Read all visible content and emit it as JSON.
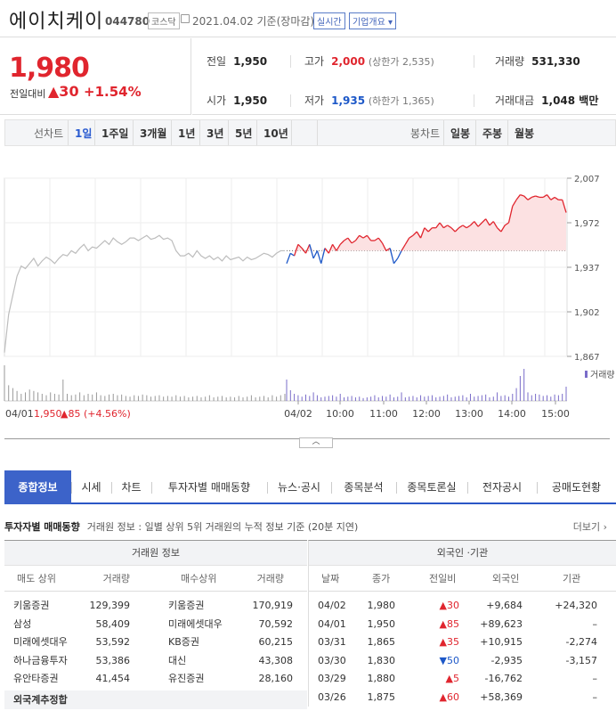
{
  "header": {
    "name": "에이치케이",
    "code": "044780",
    "market": "코스닥",
    "date": "2021.04.02 기준(장마감)",
    "realtime": "실시간",
    "corp_info": "기업개요 ▾"
  },
  "price": {
    "current": "1,980",
    "change_label": "전일대비",
    "change_value": "▲30",
    "change_pct": "+1.54%"
  },
  "info": {
    "prev_label": "전일",
    "prev": "1,950",
    "high_label": "고가",
    "high": "2,000",
    "upper": "(상한가 2,535)",
    "volume_label": "거래량",
    "volume": "531,330",
    "open_label": "시가",
    "open": "1,950",
    "low_label": "저가",
    "low": "1,935",
    "lower": "(하한가 1,365)",
    "amount_label": "거래대금",
    "amount": "1,048 백만"
  },
  "periods": {
    "line_label": "선차트",
    "items": [
      "1일",
      "1주일",
      "3개월",
      "1년",
      "3년",
      "5년",
      "10년"
    ],
    "candle_label": "봉차트",
    "candle_items": [
      "일봉",
      "주봉",
      "월봉"
    ]
  },
  "chart_data": {
    "type": "line",
    "y_ticks": [
      "2,007",
      "1,972",
      "1,937",
      "1,902",
      "1,867"
    ],
    "ylim": [
      1867,
      2007
    ],
    "baseline": 1950,
    "volume_label": "거래량",
    "x_ticks": [
      "04/02",
      "10:00",
      "11:00",
      "12:00",
      "13:00",
      "14:00",
      "15:00"
    ],
    "prev_day": {
      "date": "04/01",
      "price": "1,950",
      "change": "▲85",
      "pct": "(+4.56%)"
    },
    "colors": {
      "up": "#e0252e",
      "down": "#1d58c8",
      "prev": "#bdbdbd",
      "fill": "#fce1e2"
    },
    "prev_series": [
      1870,
      1900,
      1915,
      1930,
      1938,
      1936,
      1940,
      1944,
      1938,
      1942,
      1945,
      1943,
      1940,
      1944,
      1947,
      1946,
      1950,
      1948,
      1952,
      1955,
      1950,
      1953,
      1952,
      1955,
      1958,
      1955,
      1960,
      1957,
      1955,
      1957,
      1960,
      1960,
      1958,
      1960,
      1962,
      1959,
      1960,
      1962,
      1959,
      1960,
      1958,
      1950,
      1946,
      1946,
      1948,
      1945,
      1950,
      1946,
      1944,
      1946,
      1943,
      1945,
      1942,
      1946,
      1943,
      1944,
      1945,
      1942,
      1945,
      1943,
      1944,
      1946,
      1948,
      1947,
      1945,
      1948,
      1950,
      1950
    ],
    "today_series": [
      1940,
      1948,
      1946,
      1955,
      1952,
      1948,
      1955,
      1944,
      1950,
      1940,
      1952,
      1948,
      1955,
      1950,
      1955,
      1958,
      1960,
      1956,
      1958,
      1962,
      1960,
      1962,
      1958,
      1958,
      1960,
      1956,
      1950,
      1952,
      1940,
      1944,
      1950,
      1955,
      1960,
      1962,
      1965,
      1960,
      1968,
      1965,
      1968,
      1968,
      1972,
      1968,
      1970,
      1968,
      1965,
      1968,
      1970,
      1968,
      1970,
      1973,
      1969,
      1972,
      1975,
      1970,
      1973,
      1968,
      1965,
      1970,
      1972,
      1985,
      1990,
      1994,
      1993,
      1990,
      1992,
      1993,
      1992,
      1992,
      1994,
      1990,
      1992,
      1990,
      1990,
      1980
    ],
    "prev_volume": [
      50,
      22,
      18,
      14,
      10,
      12,
      16,
      14,
      12,
      10,
      8,
      12,
      10,
      9,
      30,
      10,
      8,
      9,
      12,
      8,
      10,
      9,
      12,
      8,
      7,
      9,
      10,
      8,
      9,
      7,
      6,
      8,
      7,
      9,
      8,
      6,
      7,
      8,
      6,
      7,
      6,
      8,
      6,
      7,
      5,
      6,
      7,
      5,
      6,
      8,
      5,
      6,
      7,
      5,
      6,
      5,
      7,
      5,
      6,
      8,
      5,
      6,
      7,
      5,
      8,
      6,
      8,
      10
    ],
    "today_volume": [
      30,
      15,
      10,
      8,
      6,
      9,
      7,
      12,
      8,
      5,
      6,
      7,
      8,
      6,
      10,
      5,
      6,
      7,
      5,
      6,
      4,
      5,
      6,
      8,
      5,
      7,
      6,
      9,
      5,
      6,
      12,
      5,
      6,
      7,
      5,
      8,
      6,
      7,
      8,
      5,
      6,
      7,
      9,
      5,
      6,
      7,
      8,
      5,
      10,
      6,
      7,
      8,
      9,
      5,
      6,
      12,
      7,
      8,
      6,
      10,
      18,
      35,
      45,
      12,
      8,
      10,
      9,
      7,
      8,
      6,
      9,
      8,
      10,
      20
    ]
  },
  "main_tabs": [
    "종합정보",
    "시세",
    "차트",
    "투자자별 매매동향",
    "뉴스·공시",
    "종목분석",
    "종목토론실",
    "전자공시",
    "공매도현황"
  ],
  "section": {
    "title": "투자자별 매매동향",
    "desc": "거래원 정보 : 일별 상위 5위 거래원의 누적 정보 기준 (20분 지연)",
    "more": "더보기 ›"
  },
  "broker_table": {
    "title": "거래원 정보",
    "headers": [
      "매도 상위",
      "거래량",
      "매수상위",
      "거래량"
    ],
    "rows": [
      [
        "키움증권",
        "129,399",
        "키움증권",
        "170,919"
      ],
      [
        "삼성",
        "58,409",
        "미래에셋대우",
        "70,592"
      ],
      [
        "미래에셋대우",
        "53,592",
        "KB증권",
        "60,215"
      ],
      [
        "하나금융투자",
        "53,386",
        "대신",
        "43,308"
      ],
      [
        "유안타증권",
        "41,454",
        "유진증권",
        "28,160"
      ]
    ],
    "foreign_label": "외국계추정합"
  },
  "inst_table": {
    "title": "외국인 ·기관",
    "headers": [
      "날짜",
      "종가",
      "전일비",
      "외국인",
      "기관"
    ],
    "rows": [
      {
        "date": "04/02",
        "close": "1,980",
        "diff": "▲30",
        "dir": "up",
        "foreign": "+9,684",
        "inst": "+24,320"
      },
      {
        "date": "04/01",
        "close": "1,950",
        "diff": "▲85",
        "dir": "up",
        "foreign": "+89,623",
        "inst": "–"
      },
      {
        "date": "03/31",
        "close": "1,865",
        "diff": "▲35",
        "dir": "up",
        "foreign": "+10,915",
        "inst": "-2,274"
      },
      {
        "date": "03/30",
        "close": "1,830",
        "diff": "▼50",
        "dir": "dn",
        "foreign": "-2,935",
        "inst": "-3,157"
      },
      {
        "date": "03/29",
        "close": "1,880",
        "diff": "▲5",
        "dir": "up",
        "foreign": "-16,762",
        "inst": "–"
      },
      {
        "date": "03/26",
        "close": "1,875",
        "diff": "▲60",
        "dir": "up",
        "foreign": "+58,369",
        "inst": "–"
      }
    ]
  }
}
